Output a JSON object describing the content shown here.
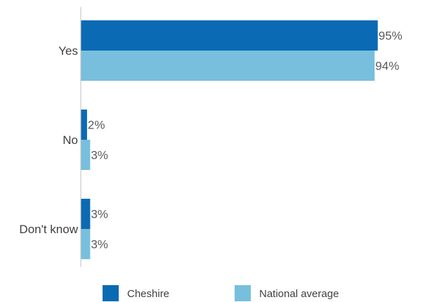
{
  "chart_data": {
    "type": "bar",
    "orientation": "horizontal",
    "categories": [
      "Yes",
      "No",
      "Don't know"
    ],
    "series": [
      {
        "name": "Cheshire",
        "values": [
          95,
          2,
          3
        ],
        "color": "#0a6ab4"
      },
      {
        "name": "National average",
        "values": [
          94,
          3,
          3
        ],
        "color": "#78bfdd"
      }
    ],
    "value_labels": [
      [
        "95%",
        "2%",
        "3%"
      ],
      [
        "94%",
        "3%",
        "3%"
      ]
    ],
    "xlim": [
      0,
      100
    ],
    "grid": false,
    "legend_position": "bottom"
  }
}
